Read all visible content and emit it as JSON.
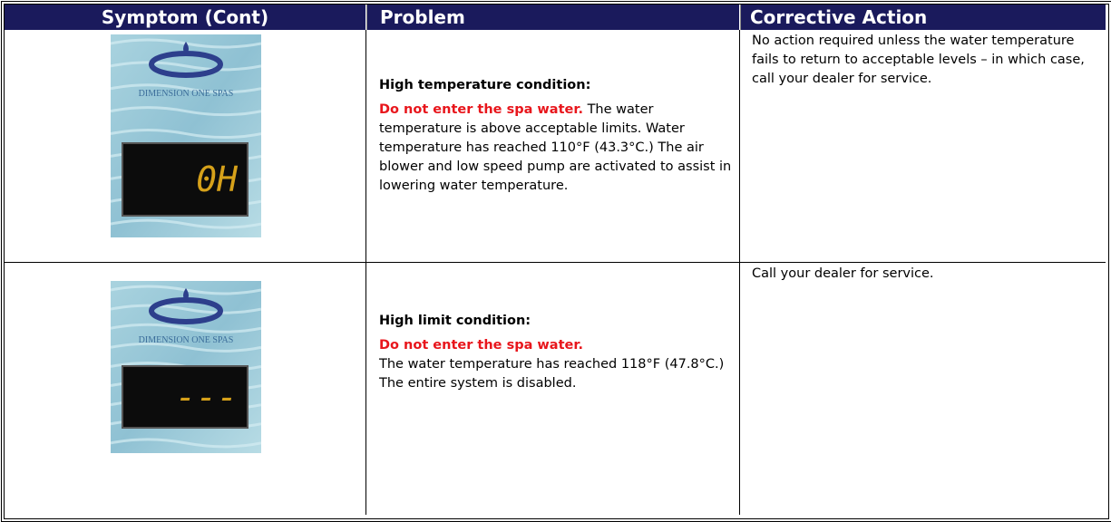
{
  "table": {
    "headers": [
      "Symptom (Cont)",
      "Problem",
      "Corrective Action"
    ],
    "rows": [
      {
        "panel": {
          "brand": "DIMENSION ONE SPAS",
          "display": "0H"
        },
        "problem": {
          "heading": "High temperature condition:",
          "warning": "Do not enter the spa water.",
          "body": "The water temperature is above acceptable limits. Water temperature has reached 110°F (43.3°C.)  The air blower and low speed pump are activated to assist in lowering water temperature."
        },
        "action": "No action required unless the water temperature fails to return to acceptable levels – in which case, call your dealer for service."
      },
      {
        "panel": {
          "brand": "DIMENSION ONE SPAS",
          "display": "---"
        },
        "problem": {
          "heading": "High limit condition:",
          "warning": "Do not enter the spa water.",
          "body": "The water temperature has reached 118°F (47.8°C.)  The entire system is disabled."
        },
        "action": "Call your dealer for service."
      }
    ]
  }
}
